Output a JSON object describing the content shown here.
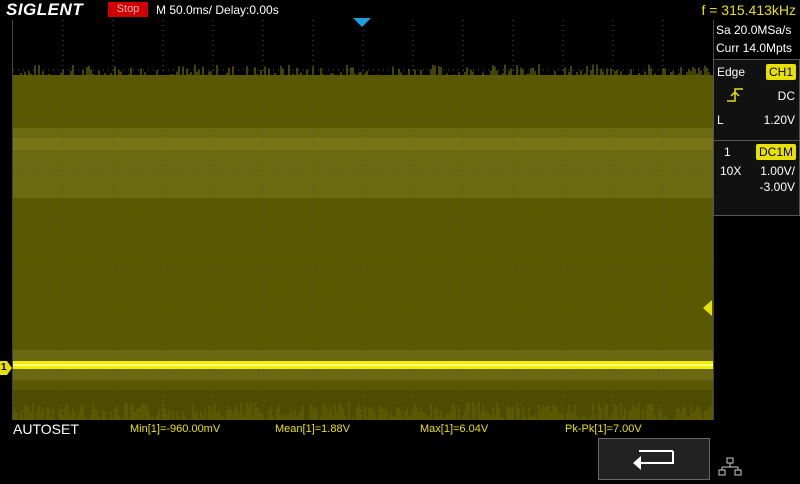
{
  "header": {
    "brand": "SIGLENT",
    "status": "Stop",
    "timebase": "M 50.0ms/ Delay:0.00s",
    "frequency": "f = 315.413kHz"
  },
  "acquisition": {
    "sample_rate": "Sa 20.0MSa/s",
    "memory": "Curr 14.0Mpts"
  },
  "trigger": {
    "type": "Edge",
    "source": "CH1",
    "slope_icon": "rising-edge-icon",
    "coupling": "DC",
    "level_label": "L",
    "level": "1.20V"
  },
  "channel": {
    "number": "1",
    "coupling": "DC1M",
    "probe": "10X",
    "scale": "1.00V/",
    "offset": "-3.00V",
    "marker": "1"
  },
  "footer": {
    "autoset": "AUTOSET",
    "measurements": [
      {
        "label": "Min[1]=-960.00mV"
      },
      {
        "label": "Mean[1]=1.88V"
      },
      {
        "label": "Max[1]=6.04V"
      },
      {
        "label": "Pk-Pk[1]=7.00V"
      }
    ],
    "back_icon": "return-arrow-icon",
    "network_icon": "network-icon"
  },
  "colors": {
    "trace": "#e8e000",
    "stop": "#d00000",
    "trigger_marker": "#1aa0e0"
  }
}
